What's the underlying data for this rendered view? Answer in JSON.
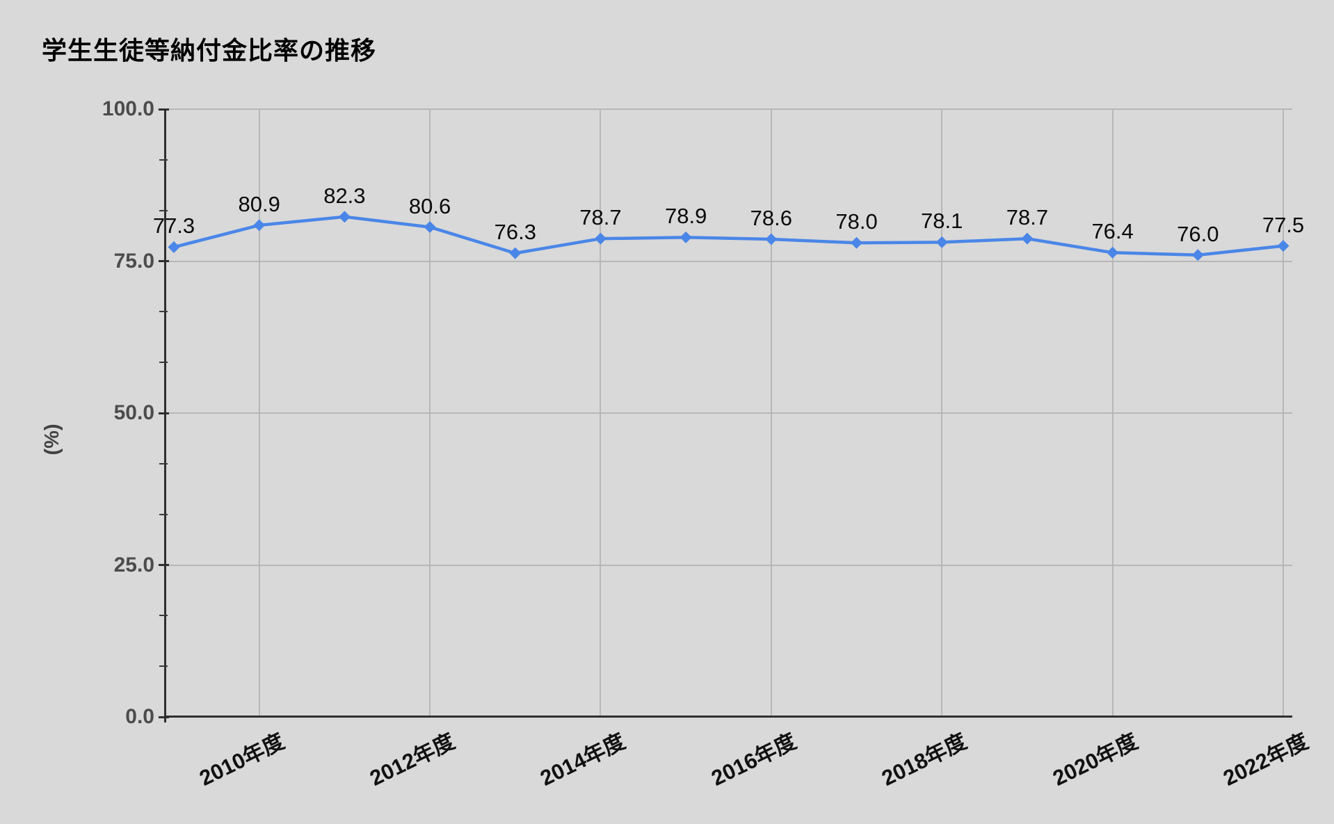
{
  "page": {
    "background": "#d9d9d9"
  },
  "chart_data": {
    "type": "line",
    "title": "学生生徒等納付金比率の推移",
    "ylabel": "(%)",
    "xlabel": "",
    "values": [
      77.3,
      80.9,
      82.3,
      80.6,
      76.3,
      78.7,
      78.9,
      78.6,
      78.0,
      78.1,
      78.7,
      76.4,
      76.0,
      77.5
    ],
    "point_labels": [
      "77.3",
      "80.9",
      "82.3",
      "80.6",
      "76.3",
      "78.7",
      "78.9",
      "78.6",
      "78.0",
      "78.1",
      "78.7",
      "76.4",
      "76.0",
      "77.5"
    ],
    "x_tick_labels": [
      "2010年度",
      "2012年度",
      "2014年度",
      "2016年度",
      "2018年度",
      "2020年度",
      "2022年度"
    ],
    "x_tick_point_indices": [
      1,
      3,
      5,
      7,
      9,
      11,
      13
    ],
    "y_tick_labels": [
      "0.0",
      "25.0",
      "50.0",
      "75.0",
      "100.0"
    ],
    "y_tick_values": [
      0,
      25,
      50,
      75,
      100
    ],
    "y_minor_ticks_per_interval": 2,
    "ylim": [
      0,
      100
    ],
    "grid": true,
    "legend": "none",
    "marker": "diamond",
    "colors": {
      "series": "#4a86e8",
      "background": "#d9d9d9",
      "gridline": "#b7b7b7",
      "axis": "#2e2e2e",
      "title": "#000000",
      "y_tick_label": "#4c4c4c",
      "x_tick_label": "#111111",
      "data_label": "#0a0a0a"
    }
  }
}
